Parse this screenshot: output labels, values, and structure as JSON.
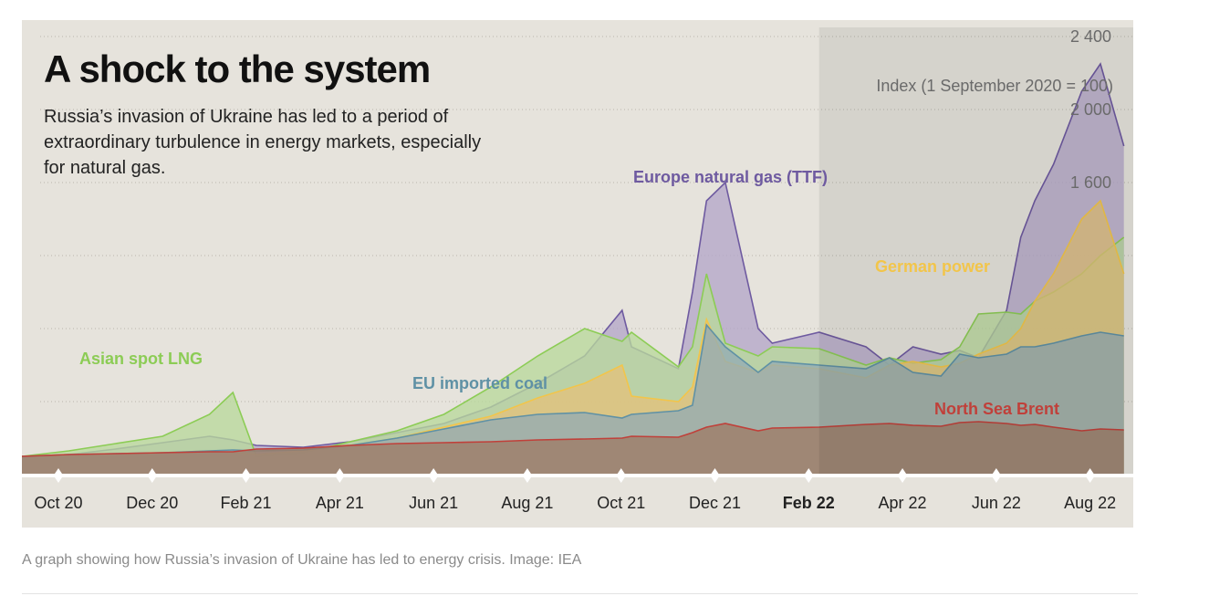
{
  "title": "A shock to the system",
  "subtitle": "Russia’s invasion of Ukraine has led to a period of extraordinary turbulence in energy markets, especially for natural gas.",
  "caption": "A graph showing how Russia’s invasion of Ukraine has led to energy crisis. Image: IEA",
  "chart_data": {
    "type": "area",
    "title": "A shock to the system",
    "ylabel": "Index (1 September 2020 = 100)",
    "ylim": [
      0,
      2400
    ],
    "y_ticks": [
      "2 400",
      "2 000",
      "1 600"
    ],
    "y_tick_values": [
      2400,
      2000,
      1600
    ],
    "x_ticks": [
      "Oct 20",
      "Dec 20",
      "Feb 21",
      "Apr 21",
      "Jun 21",
      "Aug 21",
      "Oct 21",
      "Dec 21",
      "Feb 22",
      "Apr 22",
      "Jun 22",
      "Aug 22"
    ],
    "highlighted_tick": "Feb 22",
    "grid": true,
    "x_months": [
      0,
      1,
      2,
      3,
      4,
      4.5,
      5,
      6,
      7,
      8,
      9,
      10,
      11,
      12,
      12.8,
      13,
      14,
      14.3,
      14.6,
      15,
      15.7,
      16,
      17,
      18,
      18.5,
      19,
      19.6,
      20,
      20.4,
      21,
      21.3,
      21.6,
      22,
      22.6,
      23,
      23.5
    ],
    "series": [
      {
        "name": "Europe natural gas (TTF)",
        "color": "#6e5aa0",
        "fill": "#b3a7c9",
        "values": [
          100,
          110,
          140,
          175,
          210,
          190,
          160,
          150,
          180,
          230,
          280,
          370,
          500,
          650,
          900,
          700,
          580,
          1000,
          1500,
          1600,
          800,
          720,
          780,
          700,
          600,
          700,
          660,
          680,
          640,
          900,
          1300,
          1500,
          1700,
          2100,
          2250,
          1800
        ]
      },
      {
        "name": "Asian spot LNG",
        "color": "#8ccc55",
        "fill": "#b8d99c",
        "values": [
          100,
          130,
          170,
          210,
          330,
          450,
          100,
          120,
          180,
          240,
          330,
          480,
          650,
          800,
          730,
          780,
          590,
          700,
          1100,
          720,
          650,
          700,
          690,
          600,
          640,
          610,
          630,
          700,
          880,
          890,
          880,
          950,
          1000,
          1100,
          1200,
          1300
        ]
      },
      {
        "name": "German power",
        "color": "#f2c54a",
        "fill": "#e3c27b",
        "values": [
          100,
          100,
          110,
          120,
          130,
          120,
          110,
          130,
          160,
          200,
          260,
          320,
          420,
          500,
          600,
          430,
          400,
          480,
          850,
          620,
          560,
          600,
          580,
          530,
          600,
          620,
          590,
          610,
          660,
          720,
          800,
          950,
          1100,
          1400,
          1500,
          1100
        ]
      },
      {
        "name": "EU imported coal",
        "color": "#5f91a5",
        "fill": "#93acb3",
        "values": [
          100,
          110,
          115,
          120,
          130,
          135,
          130,
          135,
          160,
          200,
          250,
          300,
          330,
          340,
          310,
          330,
          350,
          380,
          820,
          700,
          560,
          620,
          600,
          580,
          640,
          560,
          540,
          660,
          640,
          660,
          700,
          700,
          720,
          760,
          780,
          760
        ]
      },
      {
        "name": "North Sea Brent",
        "color": "#c0403a",
        "fill": "#9e7b66",
        "values": [
          100,
          110,
          115,
          120,
          125,
          125,
          140,
          145,
          160,
          170,
          175,
          180,
          190,
          195,
          200,
          210,
          205,
          230,
          260,
          280,
          240,
          255,
          260,
          275,
          280,
          270,
          265,
          285,
          290,
          280,
          270,
          275,
          260,
          240,
          250,
          245
        ]
      }
    ]
  },
  "series_labels": {
    "ttf": "Europe natural gas (TTF)",
    "lng": "Asian spot LNG",
    "power": "German power",
    "coal": "EU imported coal",
    "brent": "North Sea Brent"
  },
  "colors": {
    "background": "#e6e3dc",
    "shaded_region": "#000000",
    "axis": "#ffffff"
  }
}
